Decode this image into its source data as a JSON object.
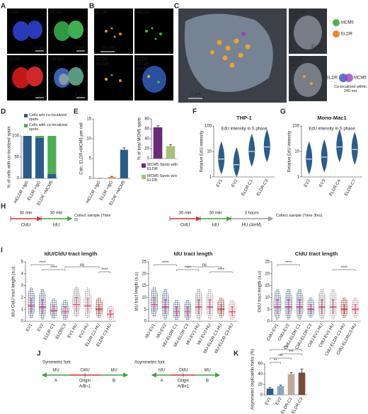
{
  "panels": [
    "A",
    "B",
    "C",
    "D",
    "E",
    "F",
    "G",
    "H",
    "I",
    "J",
    "K"
  ],
  "A": {
    "channels": [
      "DAPI",
      "PCNA",
      "ELDR",
      "Merged"
    ],
    "scale": "5 µm"
  },
  "B": {
    "tiles": [
      [
        "ELDR"
      ],
      [
        "MCM5"
      ],
      [
        "ELDR",
        "MCM5"
      ],
      [
        "ELDR",
        "MCM5",
        "DAPI"
      ]
    ],
    "scale": "10 µm"
  },
  "C": {
    "scale_main": "1 µm",
    "scale_inset": "2 µm",
    "insets": [
      [
        "mELDR",
        "IgG"
      ],
      [
        "ELDR",
        "IgG"
      ]
    ],
    "legend": [
      "MCM5",
      "ELDR"
    ],
    "venn": [
      "ELDR",
      "MCM5"
    ],
    "note": "Co-localized within 240 nm"
  },
  "H": {
    "left": {
      "durations": [
        "30 min",
        "30 min"
      ],
      "labels": [
        "CldU",
        "IdU"
      ],
      "end": "Collect sample (Time 0)"
    },
    "right": {
      "durations": [
        "30 min",
        "30 min",
        "3 hours"
      ],
      "labels": [
        "CldU",
        "IdU",
        "HU (4mM)"
      ],
      "end": "Collect sample (Time 3hrs)"
    }
  },
  "J": {
    "forks": [
      {
        "title": "Symmetric fork",
        "labels": [
          "IdU",
          "CldU",
          "IdU"
        ],
        "parts": [
          "A",
          "Origin",
          "B"
        ],
        "ratio": "A/B≈1"
      },
      {
        "title": "Asymmetric fork",
        "labels": [
          "IdU",
          "CldU",
          "IdU"
        ],
        "parts": [
          "A",
          "Origin",
          "B"
        ],
        "ratio": "A/B≠1"
      }
    ]
  },
  "chart_data": [
    {
      "type": "stacked_bar",
      "ylabel": "% of cells with co-localized spots",
      "categories": [
        "mELDR +IgG",
        "ELDR +IgG",
        "ELDR +MCM5"
      ],
      "series": [
        {
          "name": "Cells w/o co-localized spots",
          "color": "#2b5c8a",
          "values": [
            100,
            95,
            10
          ]
        },
        {
          "name": "Cells with co-localized spots",
          "color": "#4caf50",
          "values": [
            0,
            5,
            90
          ]
        }
      ],
      "ylim": [
        0,
        100
      ],
      "yticks": [
        0,
        50,
        100
      ]
    },
    {
      "type": "bar",
      "ylabel": "Calc. ELDR+MCM5 per cell",
      "categories": [
        "mELDR +IgG",
        "ELDR +IgG",
        "ELDR +MCM5"
      ],
      "values": [
        0,
        0.3,
        7.2
      ],
      "errors": [
        0,
        0.2,
        0.5
      ],
      "colors": [
        "#e08a2a",
        "#e08a2a",
        "#2b5c8a"
      ],
      "ylim": [
        0,
        15
      ],
      "yticks": [
        0,
        5,
        10,
        15
      ]
    },
    {
      "type": "grouped_bar",
      "ylabel": "% of total MCM5 spots",
      "series": [
        {
          "name": "MCM5 Spots with ELDR",
          "color": "#6a2a7a",
          "values": [
            63
          ],
          "errors": [
            3
          ]
        },
        {
          "name": "MCM5 Spots w/o ELDR",
          "color": "#a8c07a",
          "values": [
            25
          ],
          "errors": [
            3
          ]
        }
      ],
      "ylim": [
        0,
        80
      ],
      "yticks": [
        0,
        20,
        40,
        60,
        80
      ]
    },
    {
      "type": "violin",
      "title": "THP-1",
      "annotation": "EdU intensity in S phase",
      "ylabel": "Relative EdU intensity",
      "categories": [
        "EV1",
        "EV2",
        "ELDR-C1",
        "ELDR-C3"
      ],
      "values": [
        5,
        3,
        10,
        15
      ],
      "color": "#2b5c8a",
      "log": true,
      "ylim": [
        1,
        100
      ],
      "yticks": [
        1,
        10,
        100
      ]
    },
    {
      "type": "violin",
      "title": "Mono-Mac1",
      "annotation": "EdU intensity in S phase",
      "ylabel": "Relative EdU intensity",
      "categories": [
        "EV2",
        "EV3",
        "ELDR-C4",
        "ELDR-C7"
      ],
      "values": [
        5,
        6,
        15,
        12
      ],
      "color": "#2b5c8a",
      "log": true,
      "ylim": [
        1,
        100
      ],
      "yticks": [
        1,
        10,
        100
      ]
    },
    {
      "type": "dot",
      "title": "IdU/CldU tract length",
      "ylabel": "IdU/ CldU tract length (a.u)",
      "categories": [
        "EV1",
        "EV2",
        "ELDR C1",
        "ELDRC3",
        "EV1-HU",
        "EV2-HU",
        "ELDR C1-HU",
        "ELDR C3-HU"
      ],
      "values": [
        1.3,
        1.2,
        0.9,
        0.8,
        1.4,
        1.3,
        1.0,
        0.6
      ],
      "errors": [
        0.6,
        0.6,
        0.4,
        0.4,
        0.6,
        0.6,
        0.4,
        0.3
      ],
      "colors": [
        "#4f6b88",
        "#4f6b88",
        "#4f6b88",
        "#4f6b88",
        "#8d8d8d",
        "#a8a8a8",
        "#8b4a2a",
        "#c89a9a"
      ],
      "significance": [
        "****",
        "****",
        "ns",
        "****"
      ],
      "ylim": [
        0,
        5
      ],
      "yticks": [
        0,
        1,
        2,
        3,
        4,
        5
      ]
    },
    {
      "type": "dot",
      "title": "IdU tract length",
      "ylabel": "IdU tract length (a.u)",
      "categories": [
        "IdU-EV1",
        "IdU-EV2",
        "IdU-ELDR C1",
        "IdU-ELDR C3",
        "IdU-EV1-HU",
        "IdU-EV2-HU",
        "IdU-ELDR C1-HU",
        "IdU-ELDR C3-HU"
      ],
      "values": [
        7,
        6,
        4,
        4,
        6,
        6,
        5,
        4
      ],
      "errors": [
        3,
        3,
        2,
        2,
        3,
        3,
        2,
        2
      ],
      "colors": [
        "#4f6b88",
        "#4f6b88",
        "#4f6b88",
        "#4f6b88",
        "#8d8d8d",
        "#a8a8a8",
        "#8b4a2a",
        "#c89a9a"
      ],
      "significance": [
        "****",
        "****",
        "ns",
        "****"
      ],
      "ylim": [
        0,
        25
      ],
      "yticks": [
        0,
        5,
        10,
        15,
        20,
        25
      ]
    },
    {
      "type": "dot",
      "title": "CldU tract length",
      "ylabel": "CldU tract length (a.u)",
      "categories": [
        "CldU-EV1",
        "CldU-EV2",
        "CldU-ELDR C1",
        "CldU-ELDR C3",
        "CldU-EV1-HU",
        "CldU-EV2-HU",
        "CldU-ELDR C1-HU",
        "CldU-ELDRC3-HU"
      ],
      "values": [
        6,
        6,
        6,
        5,
        6,
        6,
        5,
        5
      ],
      "errors": [
        3,
        3,
        3,
        2,
        3,
        3,
        2,
        2
      ],
      "colors": [
        "#4f6b88",
        "#4f6b88",
        "#4f6b88",
        "#4f6b88",
        "#8d8d8d",
        "#a8a8a8",
        "#8b4a2a",
        "#c89a9a"
      ],
      "significance": [
        "****",
        "****"
      ],
      "ylim": [
        0,
        25
      ],
      "yticks": [
        0,
        5,
        10,
        15,
        20,
        25
      ]
    },
    {
      "type": "bar",
      "ylabel": "Asymmetric replication forks (%)",
      "categories": [
        "EV1",
        "EV2",
        "ELDR-C1",
        "ELDR-C3"
      ],
      "values": [
        12,
        17,
        40,
        43
      ],
      "errors": [
        2,
        2,
        3,
        7
      ],
      "colors": [
        "#2b5c8a",
        "#8aa6c0",
        "#c0a898",
        "#7a4a3a"
      ],
      "significance": [
        "**",
        "***",
        "***",
        "***"
      ],
      "ylim": [
        0,
        60
      ],
      "yticks": [
        0,
        20,
        40,
        60
      ]
    }
  ]
}
